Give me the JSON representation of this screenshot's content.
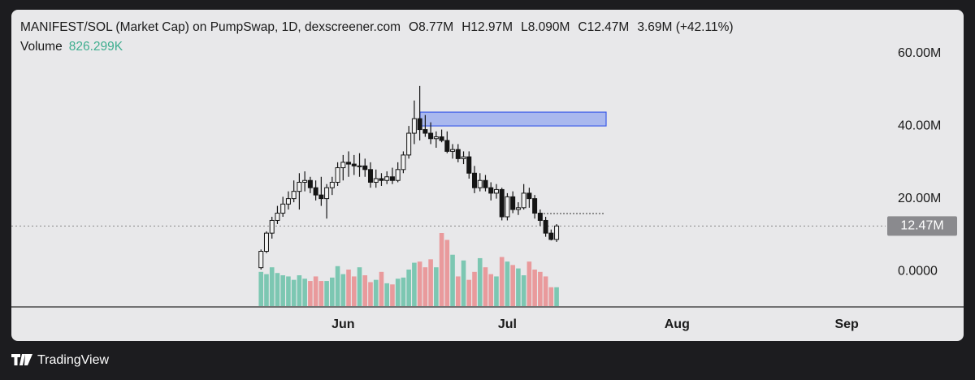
{
  "header": {
    "symbol": "MANIFEST/SOL (Market Cap) on PumpSwap, 1D, dexscreener.com",
    "open": "O8.77M",
    "high": "H12.97M",
    "low": "L8.090M",
    "close": "C12.47M",
    "change": "3.69M (+42.11%)"
  },
  "volume_label": "Volume",
  "volume_value": "826.299K",
  "brand": "TradingView",
  "chart_data": {
    "type": "candlestick",
    "open": [
      1,
      5.5,
      10.5,
      14,
      16,
      18.5,
      20,
      22,
      24.5,
      25,
      23,
      21,
      20,
      23,
      24.5,
      28.5,
      30,
      29.5,
      29,
      29,
      28,
      24.5,
      25.5,
      25,
      26,
      25,
      28,
      32,
      38,
      42,
      39,
      38,
      36.5,
      37,
      36,
      33,
      33.5,
      31,
      31.5,
      27,
      23,
      25,
      23,
      21.5,
      22.5,
      15,
      20.5,
      17,
      17.5,
      21.5,
      20,
      16,
      14,
      10.5,
      8.77
    ],
    "high": [
      6,
      11,
      15,
      18,
      20.5,
      22,
      25,
      27,
      27.5,
      26,
      25,
      26,
      24,
      26,
      30,
      32,
      33,
      32,
      32.5,
      31,
      30,
      28,
      27,
      27.5,
      28.5,
      30,
      33,
      40,
      47,
      51,
      43,
      41,
      38.5,
      39,
      38.5,
      35,
      35,
      33,
      33,
      29,
      27,
      26.5,
      24.5,
      24,
      23,
      21.5,
      22,
      19,
      24,
      23,
      21,
      17,
      15,
      11.5,
      12.97
    ],
    "low": [
      0.5,
      5,
      9,
      13,
      15,
      17,
      19,
      17,
      22,
      21.5,
      19.5,
      18,
      14.5,
      21,
      23.5,
      25,
      26,
      26.5,
      26,
      26,
      23,
      23,
      23.5,
      24,
      24,
      24.5,
      27,
      31,
      35,
      36,
      37,
      35,
      34,
      35.5,
      32.5,
      31,
      30,
      29.5,
      25.5,
      21.5,
      22,
      22,
      19.5,
      20,
      14,
      14,
      16,
      15.5,
      17,
      17.5,
      14.5,
      12.5,
      9.5,
      8.5,
      8.09
    ],
    "close": [
      5.5,
      10.5,
      14,
      16,
      18.5,
      20,
      22,
      24.5,
      25,
      23,
      21,
      20,
      23,
      24.5,
      28.5,
      30,
      29.5,
      29,
      29,
      28,
      24.5,
      25.5,
      25,
      26,
      25,
      28,
      32,
      38,
      42,
      39,
      38,
      36.5,
      37,
      36,
      33,
      33.5,
      31,
      31.5,
      27,
      23,
      25,
      23,
      21.5,
      22.5,
      15,
      20.5,
      17,
      17.5,
      21.5,
      20,
      16,
      14,
      10.5,
      8.77,
      12.47
    ],
    "volume": [
      1500,
      1400,
      1700,
      1450,
      1350,
      1300,
      1150,
      1350,
      1200,
      1100,
      1300,
      1100,
      1100,
      1250,
      1750,
      1400,
      1600,
      1300,
      1700,
      1350,
      1050,
      1150,
      1500,
      1000,
      950,
      1200,
      1250,
      1600,
      1900,
      1950,
      1700,
      2050,
      1700,
      3200,
      2900,
      2250,
      1300,
      2000,
      1150,
      1500,
      2100,
      1700,
      1400,
      1300,
      2150,
      1950,
      1800,
      1650,
      1350,
      1950,
      1600,
      1500,
      1300,
      826.299,
      826.299
    ],
    "up_color": "#f2f2f2",
    "down_color": "#151515",
    "wick_color": "#151515",
    "volume_up_color": "#7cc7b2",
    "volume_down_color": "#e99a9c",
    "ylim": [
      -9.8,
      71.3
    ],
    "yticks": [
      {
        "value": 0,
        "label": "0.0000"
      },
      {
        "value": 20,
        "label": "20.00M"
      },
      {
        "value": 40,
        "label": "40.00M"
      },
      {
        "value": 60,
        "label": "60.00M"
      }
    ],
    "xlim": [
      -45.6,
      114.1
    ],
    "xticks": [
      {
        "value": 15,
        "label": "Jun"
      },
      {
        "value": 45,
        "label": "Jul"
      },
      {
        "value": 76,
        "label": "Aug"
      },
      {
        "value": 107,
        "label": "Sep"
      }
    ],
    "last_price": {
      "value": 12.47,
      "label": "12.47M"
    },
    "zone": [
      43.8,
      40.0
    ],
    "level": 15.9
  }
}
